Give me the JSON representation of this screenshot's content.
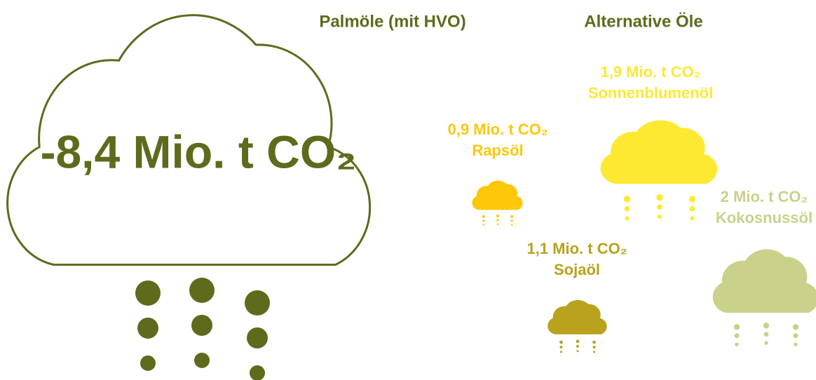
{
  "palm": {
    "header": "Palmöle (mit HVO)",
    "value": "-8,4 Mio. t CO₂"
  },
  "alternatives": {
    "header": "Alternative Öle",
    "items": [
      {
        "value": "0,9 Mio. t CO₂",
        "name": "Rapsöl"
      },
      {
        "value": "1,9 Mio. t CO₂",
        "name": "Sonnenblumenöl"
      },
      {
        "value": "1,1 Mio. t CO₂",
        "name": "Sojaöl"
      },
      {
        "value": "2 Mio. t CO₂",
        "name": "Kokosnussöl"
      }
    ]
  }
}
